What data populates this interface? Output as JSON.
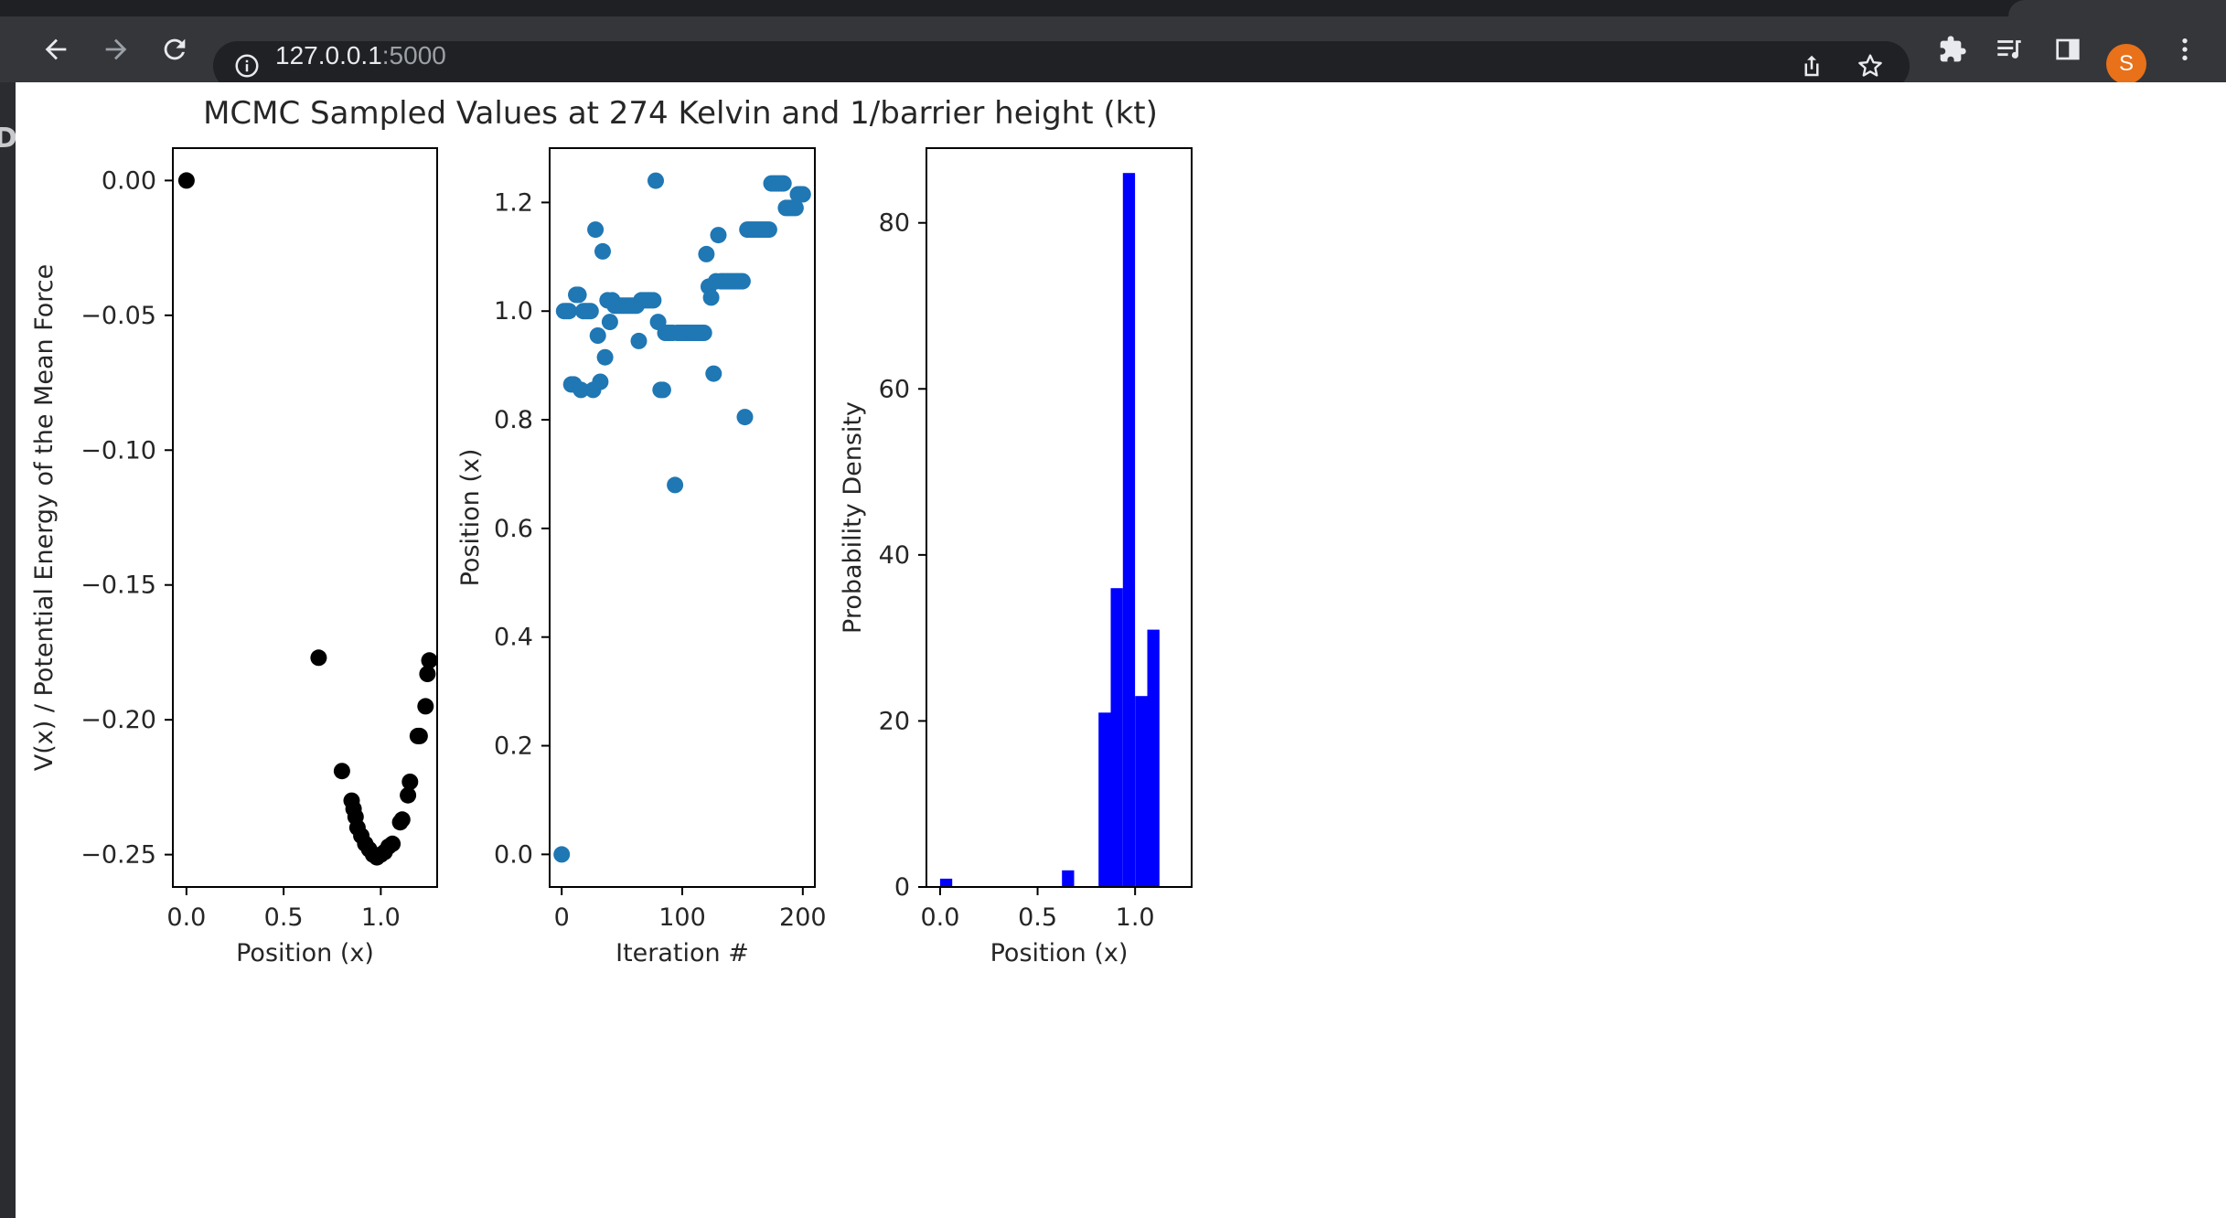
{
  "browser": {
    "url_host": "127.0.0.1",
    "url_port": ":5000",
    "profile_initial": "S",
    "left_edge_glyph": "D",
    "toolbar_icons": [
      "back-arrow-icon",
      "forward-arrow-icon",
      "reload-icon",
      "info-icon",
      "share-icon",
      "bookmark-star-icon",
      "extensions-puzzle-icon",
      "media-queue-icon",
      "side-panel-icon",
      "kebab-menu-icon"
    ]
  },
  "colors": {
    "chrome_dark": "#35363a",
    "omnibox": "#202124",
    "avatar": "#e8711a",
    "black_points": "#000000",
    "blue_points": "#1f77b4",
    "hist_bars": "#0000ff"
  },
  "figure": {
    "title": "MCMC Sampled Values at 274 Kelvin and 1/barrier height (kt)"
  },
  "chart_data": [
    {
      "type": "scatter",
      "xlabel": "Position (x)",
      "ylabel": "V(x) / Potential Energy of the Mean Force",
      "xlim": [
        -0.07,
        1.29
      ],
      "ylim": [
        -0.262,
        0.012
      ],
      "xticks": [
        0.0,
        0.5,
        1.0
      ],
      "xtick_labels": [
        "0.0",
        "0.5",
        "1.0"
      ],
      "yticks": [
        0.0,
        -0.05,
        -0.1,
        -0.15,
        -0.2,
        -0.25
      ],
      "ytick_labels": [
        "0.00",
        "−0.05",
        "−0.10",
        "−0.15",
        "−0.20",
        "−0.25"
      ],
      "color": "#000000",
      "x": [
        0.0,
        0.68,
        0.8,
        0.85,
        0.86,
        0.87,
        0.88,
        0.9,
        0.92,
        0.94,
        0.96,
        0.98,
        1.0,
        1.02,
        1.04,
        1.06,
        1.1,
        1.11,
        1.14,
        1.15,
        1.19,
        1.2,
        1.23,
        1.24,
        1.25
      ],
      "y": [
        0.0,
        -0.177,
        -0.219,
        -0.23,
        -0.233,
        -0.236,
        -0.24,
        -0.243,
        -0.246,
        -0.248,
        -0.25,
        -0.251,
        -0.25,
        -0.249,
        -0.247,
        -0.246,
        -0.238,
        -0.237,
        -0.228,
        -0.223,
        -0.206,
        -0.206,
        -0.195,
        -0.183,
        -0.178
      ]
    },
    {
      "type": "scatter",
      "xlabel": "Iteration #",
      "ylabel": "Position (x)",
      "xlim": [
        -10,
        210
      ],
      "ylim": [
        -0.06,
        1.3
      ],
      "xticks": [
        0,
        100,
        200
      ],
      "xtick_labels": [
        "0",
        "100",
        "200"
      ],
      "yticks": [
        0.0,
        0.2,
        0.4,
        0.6,
        0.8,
        1.0,
        1.2
      ],
      "ytick_labels": [
        "0.0",
        "0.2",
        "0.4",
        "0.6",
        "0.8",
        "1.0",
        "1.2"
      ],
      "color": "#1f77b4",
      "x": [
        0,
        2,
        4,
        6,
        8,
        10,
        12,
        14,
        16,
        18,
        20,
        22,
        24,
        26,
        28,
        30,
        32,
        34,
        36,
        38,
        40,
        42,
        44,
        46,
        48,
        50,
        52,
        54,
        56,
        58,
        60,
        62,
        64,
        66,
        68,
        70,
        72,
        74,
        76,
        78,
        80,
        82,
        84,
        86,
        88,
        90,
        92,
        94,
        96,
        98,
        100,
        102,
        104,
        106,
        108,
        110,
        112,
        114,
        116,
        118,
        120,
        122,
        124,
        126,
        128,
        130,
        132,
        134,
        136,
        138,
        140,
        142,
        144,
        146,
        148,
        150,
        152,
        154,
        156,
        158,
        160,
        162,
        164,
        166,
        168,
        170,
        172,
        174,
        176,
        178,
        180,
        182,
        184,
        186,
        188,
        190,
        192,
        194,
        196,
        198,
        200
      ],
      "y": [
        0.0,
        1.0,
        1.0,
        1.0,
        0.865,
        0.865,
        1.03,
        1.03,
        0.855,
        1.0,
        1.0,
        1.0,
        1.0,
        0.855,
        1.15,
        0.955,
        0.87,
        1.11,
        0.915,
        1.02,
        0.98,
        1.02,
        1.01,
        1.01,
        1.01,
        1.01,
        1.01,
        1.01,
        1.01,
        1.01,
        1.01,
        1.01,
        0.945,
        1.02,
        1.02,
        1.02,
        1.02,
        1.02,
        1.02,
        1.24,
        0.98,
        0.855,
        0.855,
        0.96,
        0.96,
        0.96,
        0.96,
        0.68,
        0.96,
        0.96,
        0.96,
        0.96,
        0.96,
        0.96,
        0.96,
        0.96,
        0.96,
        0.96,
        0.96,
        0.96,
        1.105,
        1.045,
        1.025,
        0.885,
        1.055,
        1.14,
        1.055,
        1.055,
        1.055,
        1.055,
        1.055,
        1.055,
        1.055,
        1.055,
        1.055,
        1.055,
        0.805,
        1.15,
        1.15,
        1.15,
        1.15,
        1.15,
        1.15,
        1.15,
        1.15,
        1.15,
        1.15,
        1.235,
        1.235,
        1.235,
        1.235,
        1.235,
        1.235,
        1.19,
        1.19,
        1.19,
        1.19,
        1.19,
        1.215,
        1.215,
        1.215
      ]
    },
    {
      "type": "bar",
      "xlabel": "Position (x)",
      "ylabel": "Probability Density",
      "xlim": [
        -0.07,
        1.29
      ],
      "ylim": [
        0,
        89
      ],
      "xticks": [
        0.0,
        0.5,
        1.0
      ],
      "xtick_labels": [
        "0.0",
        "0.5",
        "1.0"
      ],
      "yticks": [
        0,
        20,
        40,
        60,
        80
      ],
      "ytick_labels": [
        "0",
        "20",
        "40",
        "60",
        "80"
      ],
      "color": "#0000ff",
      "bin_edges": [
        0.0,
        0.0625,
        0.125,
        0.1875,
        0.25,
        0.3125,
        0.375,
        0.4375,
        0.5,
        0.5625,
        0.625,
        0.6875,
        0.75,
        0.8125,
        0.875,
        0.9375,
        1.0,
        1.0625,
        1.125,
        1.1875,
        1.25
      ],
      "values": [
        1,
        0,
        0,
        0,
        0,
        0,
        0,
        0,
        0,
        0,
        2,
        0,
        0,
        21,
        36,
        86,
        23,
        31,
        0,
        0
      ]
    }
  ]
}
